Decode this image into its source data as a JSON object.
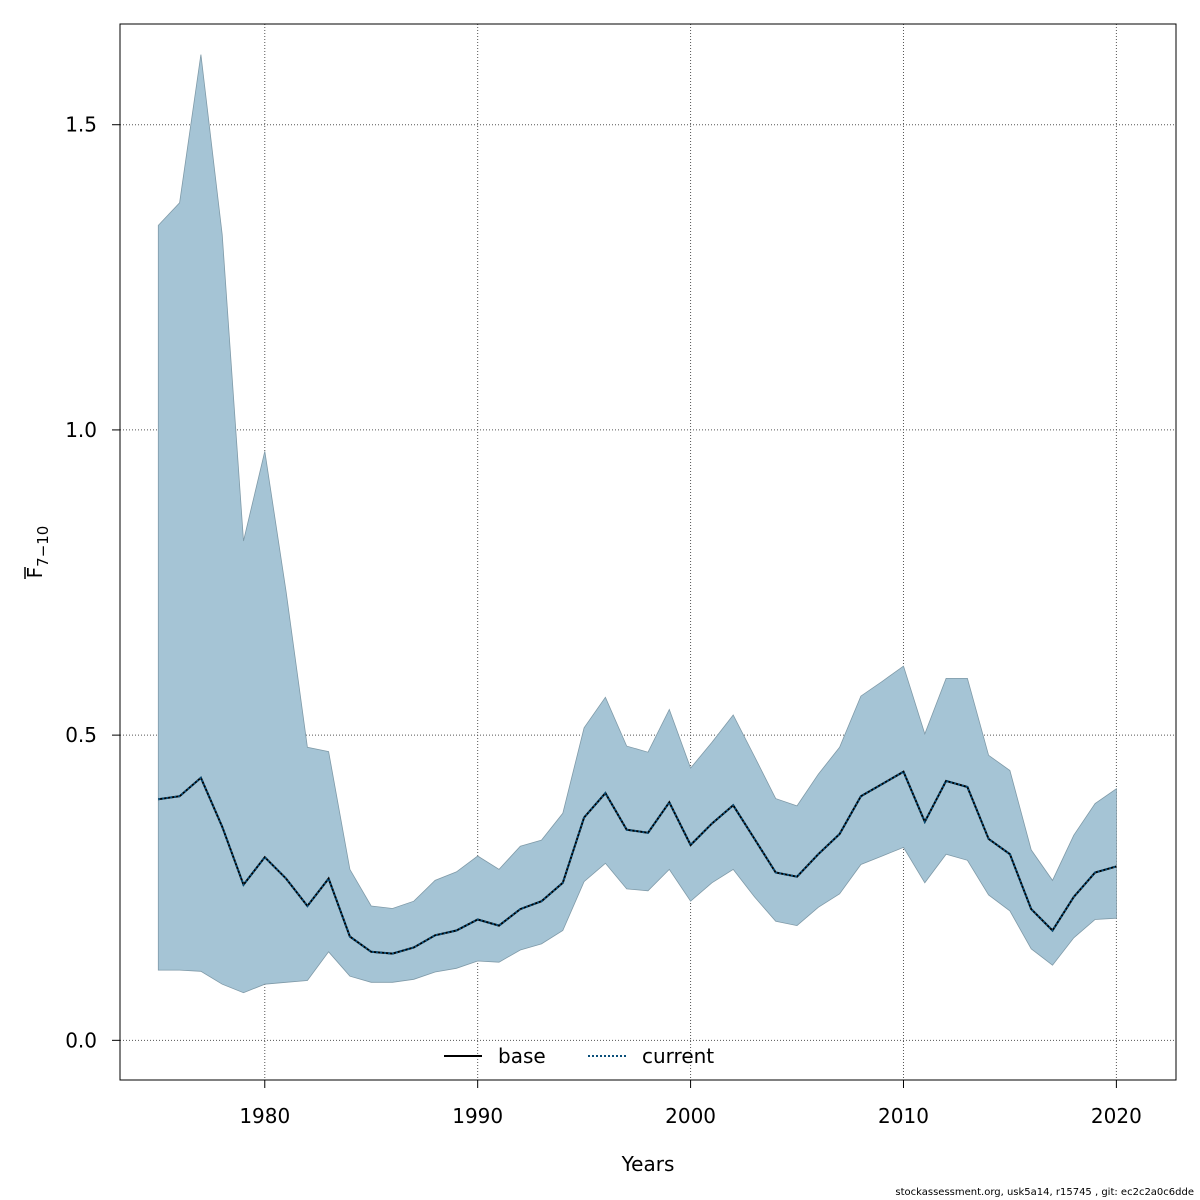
{
  "chart_data": {
    "type": "area",
    "xlabel": "Years",
    "ylabel_main": "F",
    "ylabel_sub": "7−10",
    "xlim": [
      1973.2,
      2022.8
    ],
    "ylim": [
      -0.065,
      1.665
    ],
    "x_ticks": [
      1980,
      1990,
      2000,
      2010,
      2020
    ],
    "y_ticks": [
      0.0,
      0.5,
      1.0,
      1.5
    ],
    "y_tick_labels": [
      "0.0",
      "0.5",
      "1.0",
      "1.5"
    ],
    "grid": true,
    "legend_placement": "bottom",
    "years": [
      1975,
      1976,
      1977,
      1978,
      1979,
      1980,
      1981,
      1982,
      1983,
      1984,
      1985,
      1986,
      1987,
      1988,
      1989,
      1990,
      1991,
      1992,
      1993,
      1994,
      1995,
      1996,
      1997,
      1998,
      1999,
      2000,
      2001,
      2002,
      2003,
      2004,
      2005,
      2006,
      2007,
      2008,
      2009,
      2010,
      2011,
      2012,
      2013,
      2014,
      2015,
      2016,
      2017,
      2018,
      2019,
      2020
    ],
    "series": [
      {
        "name": "base",
        "style": "solid",
        "color": "#000000",
        "values": [
          0.395,
          0.4,
          0.43,
          0.35,
          0.255,
          0.3,
          0.265,
          0.22,
          0.265,
          0.17,
          0.145,
          0.142,
          0.152,
          0.172,
          0.18,
          0.198,
          0.188,
          0.215,
          0.228,
          0.258,
          0.365,
          0.405,
          0.345,
          0.34,
          0.39,
          0.32,
          0.355,
          0.385,
          0.33,
          0.275,
          0.268,
          0.305,
          0.338,
          0.4,
          0.42,
          0.44,
          0.358,
          0.425,
          0.415,
          0.33,
          0.305,
          0.215,
          0.18,
          0.235,
          0.275,
          0.285
        ]
      },
      {
        "name": "current",
        "style": "dotted",
        "color": "#0a4f7a",
        "values": [
          0.395,
          0.4,
          0.43,
          0.35,
          0.255,
          0.3,
          0.265,
          0.22,
          0.265,
          0.17,
          0.145,
          0.142,
          0.152,
          0.172,
          0.18,
          0.198,
          0.188,
          0.215,
          0.228,
          0.258,
          0.365,
          0.405,
          0.345,
          0.34,
          0.39,
          0.32,
          0.355,
          0.385,
          0.33,
          0.275,
          0.268,
          0.305,
          0.338,
          0.4,
          0.42,
          0.44,
          0.358,
          0.425,
          0.415,
          0.33,
          0.305,
          0.215,
          0.18,
          0.235,
          0.275,
          0.285
        ]
      }
    ],
    "band": {
      "color": "#a5c4d5",
      "lower": [
        0.115,
        0.115,
        0.113,
        0.092,
        0.078,
        0.092,
        0.095,
        0.098,
        0.145,
        0.105,
        0.095,
        0.095,
        0.1,
        0.112,
        0.118,
        0.13,
        0.128,
        0.148,
        0.158,
        0.18,
        0.26,
        0.29,
        0.248,
        0.245,
        0.28,
        0.228,
        0.258,
        0.28,
        0.235,
        0.195,
        0.188,
        0.218,
        0.24,
        0.288,
        0.302,
        0.316,
        0.258,
        0.305,
        0.295,
        0.238,
        0.212,
        0.15,
        0.123,
        0.168,
        0.198,
        0.2
      ],
      "upper": [
        1.335,
        1.372,
        1.615,
        1.32,
        0.818,
        0.965,
        0.735,
        0.48,
        0.473,
        0.28,
        0.22,
        0.216,
        0.228,
        0.262,
        0.276,
        0.302,
        0.28,
        0.318,
        0.328,
        0.372,
        0.512,
        0.562,
        0.482,
        0.472,
        0.542,
        0.446,
        0.488,
        0.533,
        0.465,
        0.396,
        0.384,
        0.436,
        0.48,
        0.564,
        0.588,
        0.613,
        0.502,
        0.593,
        0.593,
        0.467,
        0.442,
        0.312,
        0.262,
        0.336,
        0.388,
        0.412
      ]
    }
  },
  "footer": "stockassessment.org, usk5a14, r15745 , git: ec2c2a0c6dde"
}
